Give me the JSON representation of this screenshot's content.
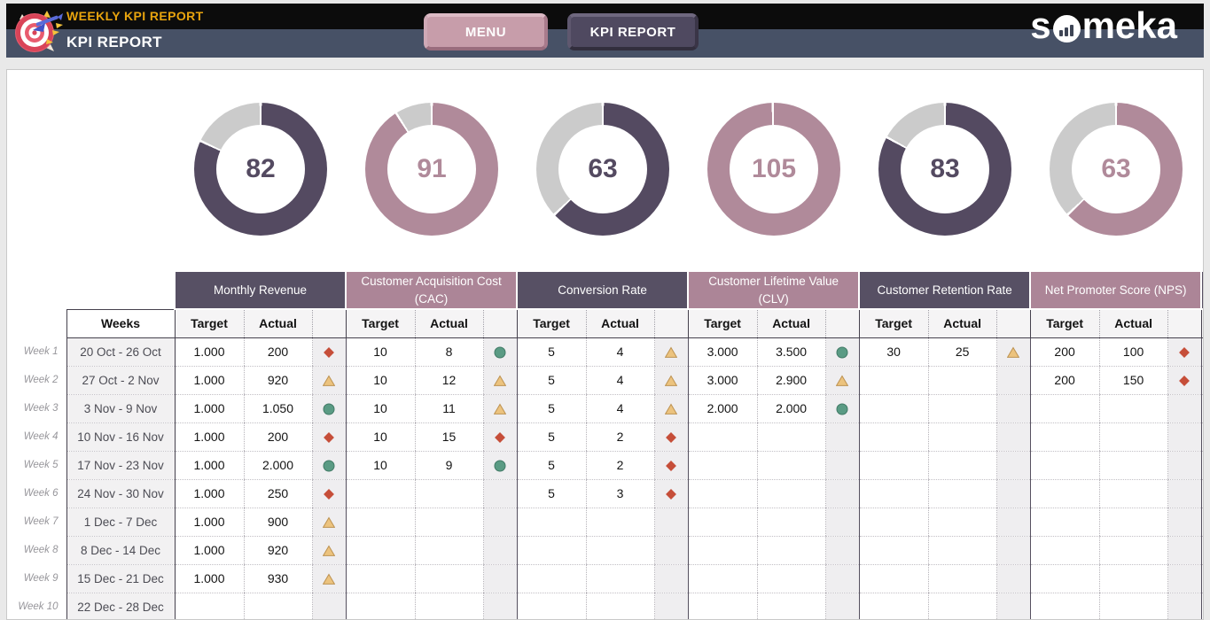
{
  "header": {
    "report_label": "WEEKLY KPI REPORT",
    "page_title": "KPI REPORT",
    "menu_button": "MENU",
    "kpi_report_button": "KPI REPORT",
    "brand_prefix": "s",
    "brand_suffix": "meka",
    "logo_icon": "dartboard-with-dart-icon",
    "brand_o_icon": "bar-chart-in-circle-icon"
  },
  "colors": {
    "donut_dark": "#544a61",
    "donut_mauve": "#b08a9a",
    "donut_gray": "#cbcbcb",
    "status_red": "#c64e39",
    "status_yellow_fill": "#ecc37e",
    "status_yellow_stroke": "#bd9251",
    "status_green_fill": "#5a9b84",
    "status_green_stroke": "#417a66",
    "header_dark": "#575064",
    "header_mauve": "#ac8597"
  },
  "chart_data": [
    {
      "type": "pie",
      "variant": "donut-gauge",
      "kpi": "Monthly Revenue",
      "value": 82,
      "max": 100,
      "center_label": "82",
      "theme": "dark"
    },
    {
      "type": "pie",
      "variant": "donut-gauge",
      "kpi": "Customer Acquisition Cost (CAC)",
      "value": 91,
      "max": 100,
      "center_label": "91",
      "theme": "mauve"
    },
    {
      "type": "pie",
      "variant": "donut-gauge",
      "kpi": "Conversion Rate",
      "value": 63,
      "max": 100,
      "center_label": "63",
      "theme": "dark"
    },
    {
      "type": "pie",
      "variant": "donut-gauge",
      "kpi": "Customer Lifetime Value (CLV)",
      "value": 105,
      "max": 100,
      "center_label": "105",
      "theme": "mauve"
    },
    {
      "type": "pie",
      "variant": "donut-gauge",
      "kpi": "Customer Retention Rate",
      "value": 83,
      "max": 100,
      "center_label": "83",
      "theme": "dark"
    },
    {
      "type": "pie",
      "variant": "donut-gauge",
      "kpi": "Net Promoter Score (NPS)",
      "value": 63,
      "max": 100,
      "center_label": "63",
      "theme": "mauve"
    }
  ],
  "donuts": [
    {
      "value": 82,
      "label": "82",
      "theme": "dark"
    },
    {
      "value": 91,
      "label": "91",
      "theme": "mauve"
    },
    {
      "value": 63,
      "label": "63",
      "theme": "dark"
    },
    {
      "value": 105,
      "label": "105",
      "theme": "mauve"
    },
    {
      "value": 83,
      "label": "83",
      "theme": "dark"
    },
    {
      "value": 63,
      "label": "63",
      "theme": "mauve"
    }
  ],
  "table": {
    "weeks_header": "Weeks",
    "target_header": "Target",
    "actual_header": "Actual",
    "kpis": [
      {
        "name": "Monthly Revenue",
        "theme": "dark"
      },
      {
        "name": "Customer Acquisition Cost (CAC)",
        "theme": "mauve"
      },
      {
        "name": "Conversion Rate",
        "theme": "dark"
      },
      {
        "name": "Customer Lifetime Value (CLV)",
        "theme": "mauve"
      },
      {
        "name": "Customer Retention Rate",
        "theme": "dark"
      },
      {
        "name": "Net Promoter Score (NPS)",
        "theme": "mauve"
      }
    ],
    "rows": [
      {
        "week_label": "Week 1",
        "date_range": "20 Oct - 26 Oct",
        "kpis": [
          {
            "target": "1.000",
            "actual": "200",
            "status": "red"
          },
          {
            "target": "10",
            "actual": "8",
            "status": "green"
          },
          {
            "target": "5",
            "actual": "4",
            "status": "yellow"
          },
          {
            "target": "3.000",
            "actual": "3.500",
            "status": "green"
          },
          {
            "target": "30",
            "actual": "25",
            "status": "yellow"
          },
          {
            "target": "200",
            "actual": "100",
            "status": "red"
          }
        ]
      },
      {
        "week_label": "Week 2",
        "date_range": "27 Oct - 2 Nov",
        "kpis": [
          {
            "target": "1.000",
            "actual": "920",
            "status": "yellow"
          },
          {
            "target": "10",
            "actual": "12",
            "status": "yellow"
          },
          {
            "target": "5",
            "actual": "4",
            "status": "yellow"
          },
          {
            "target": "3.000",
            "actual": "2.900",
            "status": "yellow"
          },
          {
            "target": "",
            "actual": "",
            "status": null
          },
          {
            "target": "200",
            "actual": "150",
            "status": "red"
          }
        ]
      },
      {
        "week_label": "Week 3",
        "date_range": "3 Nov - 9 Nov",
        "kpis": [
          {
            "target": "1.000",
            "actual": "1.050",
            "status": "green"
          },
          {
            "target": "10",
            "actual": "11",
            "status": "yellow"
          },
          {
            "target": "5",
            "actual": "4",
            "status": "yellow"
          },
          {
            "target": "2.000",
            "actual": "2.000",
            "status": "green"
          },
          {
            "target": "",
            "actual": "",
            "status": null
          },
          {
            "target": "",
            "actual": "",
            "status": null
          }
        ]
      },
      {
        "week_label": "Week 4",
        "date_range": "10 Nov - 16 Nov",
        "kpis": [
          {
            "target": "1.000",
            "actual": "200",
            "status": "red"
          },
          {
            "target": "10",
            "actual": "15",
            "status": "red"
          },
          {
            "target": "5",
            "actual": "2",
            "status": "red"
          },
          {
            "target": "",
            "actual": "",
            "status": null
          },
          {
            "target": "",
            "actual": "",
            "status": null
          },
          {
            "target": "",
            "actual": "",
            "status": null
          }
        ]
      },
      {
        "week_label": "Week 5",
        "date_range": "17 Nov - 23 Nov",
        "kpis": [
          {
            "target": "1.000",
            "actual": "2.000",
            "status": "green"
          },
          {
            "target": "10",
            "actual": "9",
            "status": "green"
          },
          {
            "target": "5",
            "actual": "2",
            "status": "red"
          },
          {
            "target": "",
            "actual": "",
            "status": null
          },
          {
            "target": "",
            "actual": "",
            "status": null
          },
          {
            "target": "",
            "actual": "",
            "status": null
          }
        ]
      },
      {
        "week_label": "Week 6",
        "date_range": "24 Nov - 30 Nov",
        "kpis": [
          {
            "target": "1.000",
            "actual": "250",
            "status": "red"
          },
          {
            "target": "",
            "actual": "",
            "status": null
          },
          {
            "target": "5",
            "actual": "3",
            "status": "red"
          },
          {
            "target": "",
            "actual": "",
            "status": null
          },
          {
            "target": "",
            "actual": "",
            "status": null
          },
          {
            "target": "",
            "actual": "",
            "status": null
          }
        ]
      },
      {
        "week_label": "Week 7",
        "date_range": "1 Dec - 7 Dec",
        "kpis": [
          {
            "target": "1.000",
            "actual": "900",
            "status": "yellow"
          },
          {
            "target": "",
            "actual": "",
            "status": null
          },
          {
            "target": "",
            "actual": "",
            "status": null
          },
          {
            "target": "",
            "actual": "",
            "status": null
          },
          {
            "target": "",
            "actual": "",
            "status": null
          },
          {
            "target": "",
            "actual": "",
            "status": null
          }
        ]
      },
      {
        "week_label": "Week 8",
        "date_range": "8 Dec - 14 Dec",
        "kpis": [
          {
            "target": "1.000",
            "actual": "920",
            "status": "yellow"
          },
          {
            "target": "",
            "actual": "",
            "status": null
          },
          {
            "target": "",
            "actual": "",
            "status": null
          },
          {
            "target": "",
            "actual": "",
            "status": null
          },
          {
            "target": "",
            "actual": "",
            "status": null
          },
          {
            "target": "",
            "actual": "",
            "status": null
          }
        ]
      },
      {
        "week_label": "Week 9",
        "date_range": "15 Dec - 21 Dec",
        "kpis": [
          {
            "target": "1.000",
            "actual": "930",
            "status": "yellow"
          },
          {
            "target": "",
            "actual": "",
            "status": null
          },
          {
            "target": "",
            "actual": "",
            "status": null
          },
          {
            "target": "",
            "actual": "",
            "status": null
          },
          {
            "target": "",
            "actual": "",
            "status": null
          },
          {
            "target": "",
            "actual": "",
            "status": null
          }
        ]
      },
      {
        "week_label": "Week 10",
        "date_range": "22 Dec - 28 Dec",
        "kpis": [
          {
            "target": "",
            "actual": "",
            "status": null
          },
          {
            "target": "",
            "actual": "",
            "status": null
          },
          {
            "target": "",
            "actual": "",
            "status": null
          },
          {
            "target": "",
            "actual": "",
            "status": null
          },
          {
            "target": "",
            "actual": "",
            "status": null
          },
          {
            "target": "",
            "actual": "",
            "status": null
          }
        ]
      }
    ]
  }
}
